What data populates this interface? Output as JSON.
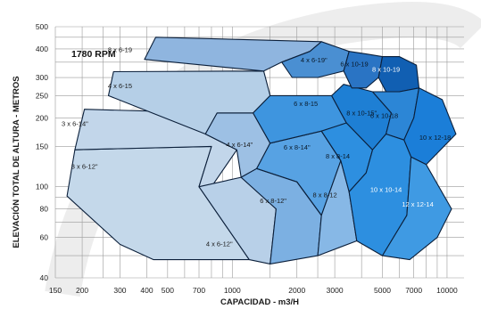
{
  "chart_data": {
    "type": "area",
    "title": "1780 RPM",
    "xlabel": "CAPACIDAD - m3/H",
    "ylabel": "ELEVACIÓN TOTAL DE ALTURA - METROS",
    "x_scale": "log",
    "y_scale": "log",
    "xlim": [
      150,
      12000
    ],
    "ylim": [
      40,
      500
    ],
    "x_ticks": [
      {
        "value": 150,
        "label": "150"
      },
      {
        "value": 200,
        "label": "200"
      },
      {
        "value": 300,
        "label": "300"
      },
      {
        "value": 400,
        "label": "400"
      },
      {
        "value": 500,
        "label": "500"
      },
      {
        "value": 700,
        "label": "700"
      },
      {
        "value": 1000,
        "label": "1000"
      },
      {
        "value": 2000,
        "label": "2000"
      },
      {
        "value": 3000,
        "label": "3000"
      },
      {
        "value": 5000,
        "label": "5000"
      },
      {
        "value": 7000,
        "label": "7000"
      },
      {
        "value": 10000,
        "label": "10000"
      }
    ],
    "y_ticks": [
      {
        "value": 40,
        "label": "40"
      },
      {
        "value": 60,
        "label": "60"
      },
      {
        "value": 80,
        "label": "80"
      },
      {
        "value": 100,
        "label": "100"
      },
      {
        "value": 150,
        "label": "150"
      },
      {
        "value": 200,
        "label": "200"
      },
      {
        "value": 250,
        "label": "250"
      },
      {
        "value": 300,
        "label": "300"
      },
      {
        "value": 400,
        "label": "400"
      },
      {
        "value": 500,
        "label": "500"
      }
    ],
    "grid": true,
    "series": [
      {
        "name": "3 x 6-12\"",
        "color": "#c4d8ea",
        "label_color": "#1a1a1a",
        "label_at": [
          205,
          120
        ],
        "polygon": [
          [
            170,
            91
          ],
          [
            185,
            145
          ],
          [
            800,
            150
          ],
          [
            700,
            100
          ],
          [
            1200,
            48
          ],
          [
            430,
            48
          ],
          [
            300,
            56
          ]
        ]
      },
      {
        "name": "3 x 6-14\"",
        "color": "#c2d6ea",
        "label_color": "#1a1a1a",
        "label_at": [
          185,
          184
        ],
        "polygon": [
          [
            185,
            145
          ],
          [
            205,
            218
          ],
          [
            850,
            210
          ],
          [
            750,
            170
          ],
          [
            1050,
            145
          ],
          [
            800,
            100
          ],
          [
            700,
            100
          ],
          [
            800,
            150
          ]
        ]
      },
      {
        "name": "4 x 6-15",
        "color": "#b5cfe7",
        "label_color": "#1a1a1a",
        "label_at": [
          300,
          270
        ],
        "polygon": [
          [
            265,
            250
          ],
          [
            280,
            318
          ],
          [
            1400,
            320
          ],
          [
            1500,
            250
          ],
          [
            1250,
            210
          ],
          [
            850,
            210
          ],
          [
            750,
            170
          ]
        ]
      },
      {
        "name": "8 x 6-19",
        "color": "#8fb5df",
        "label_color": "#1a1a1a",
        "label_at": [
          300,
          388
        ],
        "polygon": [
          [
            390,
            360
          ],
          [
            440,
            450
          ],
          [
            2600,
            430
          ],
          [
            2300,
            390
          ],
          [
            1700,
            350
          ],
          [
            1400,
            320
          ]
        ]
      },
      {
        "name": "4 x 6-12\"",
        "color": "#b8d0e8",
        "label_color": "#1a1a1a",
        "label_at": [
          870,
          55
        ],
        "polygon": [
          [
            700,
            100
          ],
          [
            1200,
            48
          ],
          [
            1500,
            46
          ],
          [
            1600,
            80
          ],
          [
            1100,
            110
          ]
        ]
      },
      {
        "name": "4 x 6-14\"",
        "color": "#9dc0e4",
        "label_color": "#1a1a1a",
        "label_at": [
          1080,
          149
        ],
        "polygon": [
          [
            750,
            170
          ],
          [
            1050,
            145
          ],
          [
            1100,
            110
          ],
          [
            1300,
            120
          ],
          [
            1500,
            155
          ],
          [
            1250,
            210
          ],
          [
            850,
            210
          ]
        ]
      },
      {
        "name": "6 x 8-12\"",
        "color": "#7cb0e2",
        "label_color": "#1a1a1a",
        "label_at": [
          1550,
          85
        ],
        "polygon": [
          [
            1100,
            110
          ],
          [
            1600,
            80
          ],
          [
            1500,
            46
          ],
          [
            2500,
            50
          ],
          [
            2600,
            75
          ],
          [
            2000,
            105
          ],
          [
            1300,
            120
          ]
        ]
      },
      {
        "name": "6 x 8-14\"",
        "color": "#57a2e3",
        "label_color": "#0a1a2a",
        "label_at": [
          2000,
          145
        ],
        "polygon": [
          [
            1300,
            120
          ],
          [
            2000,
            105
          ],
          [
            2600,
            75
          ],
          [
            3200,
            130
          ],
          [
            2600,
            175
          ],
          [
            1500,
            155
          ]
        ]
      },
      {
        "name": "6 x 8-15",
        "color": "#3e95df",
        "label_color": "#0a1a2a",
        "label_at": [
          2200,
          225
        ],
        "polygon": [
          [
            1250,
            210
          ],
          [
            1500,
            155
          ],
          [
            2600,
            175
          ],
          [
            3200,
            130
          ],
          [
            3400,
            190
          ],
          [
            2900,
            250
          ],
          [
            1500,
            250
          ]
        ]
      },
      {
        "name": "8 x 8-12",
        "color": "#87b8e6",
        "label_color": "#1a1a1a",
        "label_at": [
          2700,
          90
        ],
        "polygon": [
          [
            2000,
            105
          ],
          [
            2600,
            75
          ],
          [
            2500,
            50
          ],
          [
            3800,
            58
          ],
          [
            3500,
            95
          ],
          [
            3200,
            130
          ],
          [
            2600,
            75
          ]
        ]
      },
      {
        "name": "8 x 8-14",
        "color": "#2d8fe0",
        "label_color": "#0a1a2a",
        "label_at": [
          3100,
          133
        ],
        "polygon": [
          [
            2600,
            175
          ],
          [
            3200,
            130
          ],
          [
            3500,
            95
          ],
          [
            4200,
            115
          ],
          [
            4500,
            145
          ],
          [
            3400,
            190
          ]
        ]
      },
      {
        "name": "8 x 10-15\"",
        "color": "#1e7fd4",
        "label_color": "#0a1a2a",
        "label_at": [
          4000,
          205
        ],
        "polygon": [
          [
            2900,
            250
          ],
          [
            3400,
            190
          ],
          [
            4500,
            145
          ],
          [
            5200,
            170
          ],
          [
            5500,
            210
          ],
          [
            4500,
            260
          ],
          [
            3300,
            280
          ]
        ]
      },
      {
        "name": "4 x 6-19\"",
        "color": "#4a8fd2",
        "label_color": "#0a1a2a",
        "label_at": [
          2400,
          350
        ],
        "polygon": [
          [
            1700,
            350
          ],
          [
            2300,
            390
          ],
          [
            2600,
            430
          ],
          [
            3500,
            390
          ],
          [
            3300,
            320
          ],
          [
            2500,
            300
          ],
          [
            1900,
            300
          ]
        ]
      },
      {
        "name": "6 x 10-19",
        "color": "#2a74c4",
        "label_color": "#0a1a2a",
        "label_at": [
          3700,
          335
        ],
        "polygon": [
          [
            3300,
            320
          ],
          [
            3500,
            390
          ],
          [
            4200,
            380
          ],
          [
            5000,
            370
          ],
          [
            4800,
            300
          ],
          [
            4200,
            270
          ],
          [
            3600,
            270
          ]
        ]
      },
      {
        "name": "8 x 10-19",
        "color": "#115fb2",
        "label_color": "#ffffff",
        "label_at": [
          5200,
          318
        ],
        "polygon": [
          [
            4800,
            300
          ],
          [
            5000,
            370
          ],
          [
            6000,
            370
          ],
          [
            7200,
            340
          ],
          [
            7400,
            270
          ],
          [
            6000,
            260
          ],
          [
            5200,
            260
          ]
        ]
      },
      {
        "name": "6 x 10-18",
        "color": "#2c86d6",
        "label_color": "#0a1a2a",
        "label_at": [
          5100,
          200
        ],
        "polygon": [
          [
            4500,
            260
          ],
          [
            5500,
            210
          ],
          [
            5200,
            170
          ],
          [
            6300,
            160
          ],
          [
            7000,
            200
          ],
          [
            7400,
            270
          ],
          [
            6000,
            260
          ]
        ]
      },
      {
        "name": "10 x 12-18",
        "color": "#1b7ed8",
        "label_color": "#0a1a2a",
        "label_at": [
          8800,
          160
        ],
        "polygon": [
          [
            6300,
            160
          ],
          [
            7000,
            200
          ],
          [
            7400,
            270
          ],
          [
            9500,
            240
          ],
          [
            11000,
            170
          ],
          [
            8000,
            125
          ],
          [
            6800,
            135
          ]
        ]
      },
      {
        "name": "10 x 10-14",
        "color": "#2d8fe0",
        "label_color": "#ffffff",
        "label_at": [
          5200,
          95
        ],
        "polygon": [
          [
            3500,
            95
          ],
          [
            3800,
            58
          ],
          [
            5000,
            50
          ],
          [
            6500,
            75
          ],
          [
            6800,
            135
          ],
          [
            6300,
            160
          ],
          [
            5200,
            170
          ],
          [
            4500,
            145
          ],
          [
            4200,
            115
          ]
        ]
      },
      {
        "name": "12 x 12-14",
        "color": "#3f9ae3",
        "label_color": "#ffffff",
        "label_at": [
          7300,
          82
        ],
        "polygon": [
          [
            6500,
            75
          ],
          [
            5000,
            50
          ],
          [
            6700,
            48
          ],
          [
            9000,
            60
          ],
          [
            10500,
            80
          ],
          [
            8000,
            125
          ],
          [
            6800,
            135
          ]
        ]
      }
    ]
  }
}
